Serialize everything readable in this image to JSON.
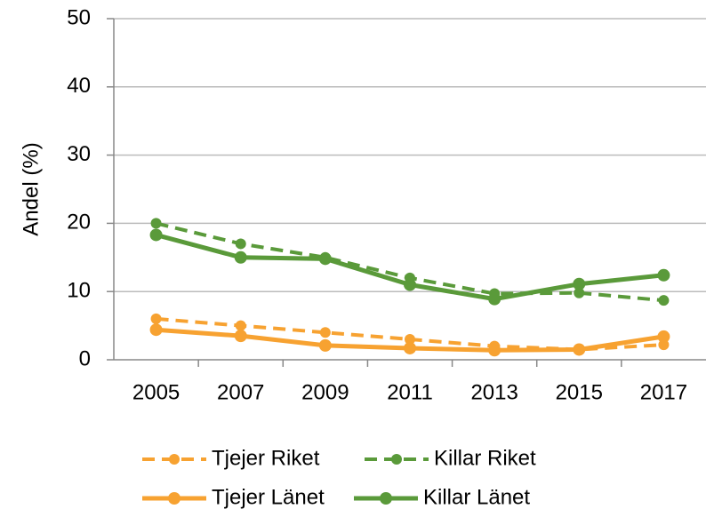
{
  "chart_data": {
    "type": "line",
    "y_label": "Andel (%)",
    "categories": [
      "2005",
      "2007",
      "2009",
      "2011",
      "2013",
      "2015",
      "2017"
    ],
    "series": [
      {
        "name": "Tjejer Riket",
        "color": "#f7a231",
        "dashed": true,
        "values": [
          6,
          5,
          4,
          3,
          2,
          1.5,
          2.2
        ]
      },
      {
        "name": "Killar Riket",
        "color": "#5a9a3a",
        "dashed": true,
        "values": [
          20,
          17,
          15,
          12,
          9.7,
          9.8,
          8.7
        ]
      },
      {
        "name": "Tjejer Länet",
        "color": "#f7a231",
        "dashed": false,
        "values": [
          4.4,
          3.5,
          2.1,
          1.7,
          1.4,
          1.5,
          3.4
        ]
      },
      {
        "name": "Killar Länet",
        "color": "#5a9a3a",
        "dashed": false,
        "values": [
          18.3,
          15,
          14.8,
          11,
          8.9,
          11.1,
          12.4
        ]
      }
    ],
    "ylim": [
      0,
      50
    ],
    "yticks": [
      0,
      10,
      20,
      30,
      40,
      50
    ],
    "grid": true
  }
}
